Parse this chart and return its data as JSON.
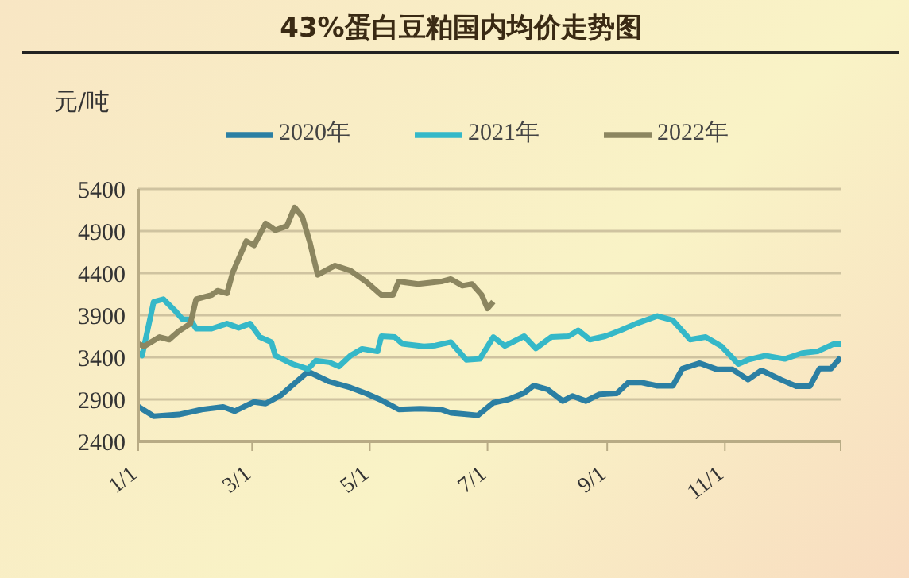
{
  "chart_data": {
    "type": "line",
    "title": "43%蛋白豆粕国内均价走势图",
    "ylabel": "元/吨",
    "xlim": [
      "--01-01",
      "--12-31"
    ],
    "xticks": [
      {
        "value": "--01-01",
        "label": "1/1"
      },
      {
        "value": "--03-01",
        "label": "3/1"
      },
      {
        "value": "--05-01",
        "label": "5/1"
      },
      {
        "value": "--07-01",
        "label": "7/1"
      },
      {
        "value": "--09-01",
        "label": "9/1"
      },
      {
        "value": "--11-01",
        "label": "11/1"
      },
      {
        "value": "--12-31",
        "label": null
      }
    ],
    "ylim": [
      2400,
      5400
    ],
    "yticks": [
      2400,
      2900,
      3400,
      3900,
      4400,
      4900,
      5400
    ],
    "grid": "y",
    "legend": "top",
    "marker": "none",
    "line_style": "solid",
    "series": [
      {
        "name": "2020年",
        "color": "#2b7fa3",
        "x": [
          "--01-01",
          "--01-09",
          "--01-22",
          "--02-03",
          "--02-14",
          "--02-20",
          "--03-02",
          "--03-08",
          "--03-16",
          "--03-30",
          "--04-10",
          "--04-21",
          "--04-29",
          "--05-07",
          "--05-16",
          "--05-27",
          "--06-07",
          "--06-12",
          "--06-26",
          "--07-04",
          "--07-12",
          "--07-20",
          "--07-25",
          "--08-01",
          "--08-09",
          "--08-14",
          "--08-21",
          "--08-28",
          "--09-06",
          "--09-12",
          "--09-19",
          "--09-27",
          "--10-05",
          "--10-10",
          "--10-19",
          "--10-28",
          "--11-05",
          "--11-13",
          "--11-20",
          "--11-30",
          "--12-08",
          "--12-15",
          "--12-20",
          "--12-26",
          "--12-31"
        ],
        "values": [
          2815,
          2700,
          2720,
          2780,
          2810,
          2760,
          2870,
          2850,
          2950,
          3230,
          3110,
          3040,
          2970,
          2890,
          2780,
          2790,
          2780,
          2740,
          2710,
          2860,
          2900,
          2975,
          3065,
          3020,
          2880,
          2940,
          2880,
          2960,
          2970,
          3100,
          3100,
          3060,
          3060,
          3265,
          3330,
          3255,
          3255,
          3135,
          3245,
          3135,
          3055,
          3055,
          3265,
          3265,
          3400
        ]
      },
      {
        "name": "2021年",
        "color": "#35b8c8",
        "x": [
          "--01-01",
          "--01-03",
          "--01-09",
          "--01-14",
          "--01-20",
          "--01-24",
          "--01-28",
          "--01-31",
          "--02-08",
          "--02-16",
          "--02-22",
          "--02-28",
          "--03-05",
          "--03-11",
          "--03-13",
          "--03-22",
          "--03-30",
          "--04-03",
          "--04-10",
          "--04-15",
          "--04-21",
          "--04-27",
          "--05-05",
          "--05-07",
          "--05-14",
          "--05-18",
          "--05-29",
          "--06-04",
          "--06-12",
          "--06-20",
          "--06-27",
          "--07-04",
          "--07-10",
          "--07-20",
          "--07-26",
          "--08-03",
          "--08-12",
          "--08-17",
          "--08-23",
          "--08-31",
          "--09-08",
          "--09-16",
          "--09-27",
          "--10-05",
          "--10-14",
          "--10-22",
          "--10-30",
          "--11-08",
          "--11-13",
          "--11-22",
          "--12-02",
          "--12-11",
          "--12-19",
          "--12-27",
          "--12-31"
        ],
        "values": [
          3450,
          3420,
          4060,
          4090,
          3955,
          3850,
          3850,
          3740,
          3740,
          3800,
          3750,
          3800,
          3640,
          3580,
          3420,
          3320,
          3260,
          3360,
          3340,
          3290,
          3420,
          3500,
          3470,
          3650,
          3640,
          3560,
          3530,
          3540,
          3580,
          3370,
          3380,
          3640,
          3535,
          3650,
          3505,
          3640,
          3650,
          3720,
          3610,
          3650,
          3720,
          3800,
          3890,
          3840,
          3610,
          3640,
          3535,
          3320,
          3370,
          3420,
          3380,
          3450,
          3470,
          3555,
          3555
        ]
      },
      {
        "name": "2022年",
        "color": "#8c8660",
        "x": [
          "--01-01",
          "--01-04",
          "--01-12",
          "--01-17",
          "--01-22",
          "--01-28",
          "--01-31",
          "--02-08",
          "--02-11",
          "--02-16",
          "--02-19",
          "--02-26",
          "--03-02",
          "--03-08",
          "--03-13",
          "--03-19",
          "--03-23",
          "--03-27",
          "--03-31",
          "--04-04",
          "--04-13",
          "--04-21",
          "--04-29",
          "--05-07",
          "--05-13",
          "--05-16",
          "--05-26",
          "--06-07",
          "--06-12",
          "--06-18",
          "--06-23",
          "--06-28",
          "--07-01",
          "--07-04"
        ],
        "values": [
          3560,
          3530,
          3640,
          3610,
          3710,
          3800,
          4090,
          4140,
          4190,
          4160,
          4410,
          4780,
          4730,
          4990,
          4910,
          4960,
          5180,
          5070,
          4760,
          4380,
          4490,
          4430,
          4300,
          4140,
          4140,
          4300,
          4270,
          4300,
          4330,
          4250,
          4270,
          4140,
          3980,
          4060
        ]
      }
    ]
  }
}
